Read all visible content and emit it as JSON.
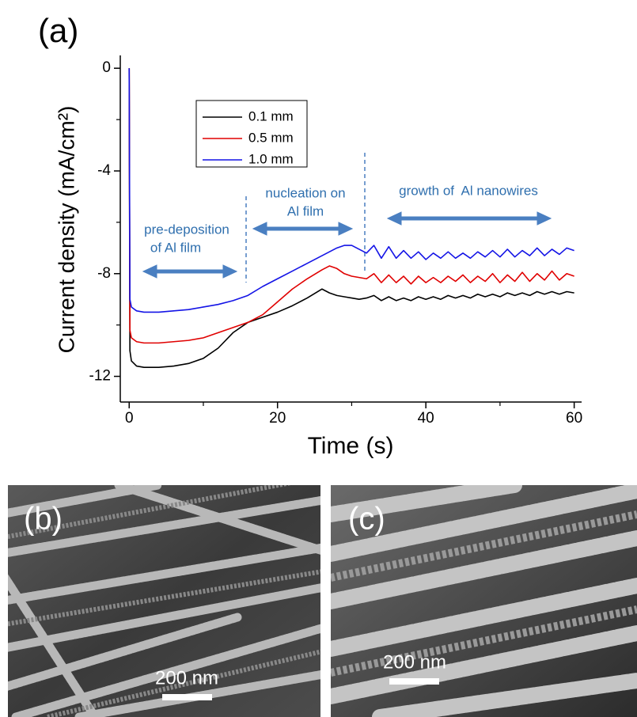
{
  "chart_data": {
    "type": "line",
    "panel_labels": [
      "(a)",
      "(b)",
      "(c)"
    ],
    "xlabel": "Time (s)",
    "ylabel": "Current density (mA/cm²)",
    "x": [
      0,
      0.1,
      0.3,
      1,
      2,
      4,
      6,
      8,
      10,
      12,
      14,
      16,
      18,
      20,
      22,
      24,
      26,
      27,
      28,
      29,
      30,
      31,
      32,
      33,
      34,
      35,
      36,
      37,
      38,
      39,
      40,
      41,
      42,
      43,
      44,
      45,
      46,
      47,
      48,
      49,
      50,
      51,
      52,
      53,
      54,
      55,
      56,
      57,
      58,
      59,
      60
    ],
    "series": [
      {
        "name": "0.1 mm",
        "color": "#000000",
        "values": [
          0,
          -11.0,
          -11.4,
          -11.6,
          -11.65,
          -11.65,
          -11.6,
          -11.5,
          -11.3,
          -10.9,
          -10.3,
          -9.9,
          -9.7,
          -9.5,
          -9.25,
          -8.95,
          -8.6,
          -8.75,
          -8.85,
          -8.9,
          -8.95,
          -9.0,
          -8.95,
          -8.85,
          -9.05,
          -8.9,
          -9.05,
          -8.95,
          -9.05,
          -8.9,
          -9.0,
          -8.9,
          -9.0,
          -8.85,
          -8.95,
          -8.85,
          -8.95,
          -8.8,
          -8.9,
          -8.8,
          -8.9,
          -8.75,
          -8.85,
          -8.75,
          -8.85,
          -8.7,
          -8.8,
          -8.7,
          -8.8,
          -8.7,
          -8.75
        ]
      },
      {
        "name": "0.5 mm",
        "color": "#e00000",
        "values": [
          0,
          -10.2,
          -10.5,
          -10.65,
          -10.7,
          -10.7,
          -10.65,
          -10.6,
          -10.5,
          -10.3,
          -10.1,
          -9.9,
          -9.6,
          -9.1,
          -8.6,
          -8.2,
          -7.85,
          -7.7,
          -7.8,
          -8.0,
          -8.1,
          -8.15,
          -8.2,
          -8.0,
          -8.35,
          -8.05,
          -8.35,
          -8.1,
          -8.4,
          -8.1,
          -8.35,
          -8.15,
          -8.35,
          -8.1,
          -8.3,
          -8.05,
          -8.35,
          -8.1,
          -8.3,
          -8.0,
          -8.35,
          -8.05,
          -8.3,
          -7.95,
          -8.3,
          -8.0,
          -8.25,
          -7.9,
          -8.25,
          -8.0,
          -8.1
        ]
      },
      {
        "name": "1.0 mm",
        "color": "#1414e6",
        "values": [
          0,
          -9.0,
          -9.3,
          -9.45,
          -9.5,
          -9.5,
          -9.45,
          -9.4,
          -9.3,
          -9.2,
          -9.05,
          -8.85,
          -8.5,
          -8.2,
          -7.9,
          -7.6,
          -7.3,
          -7.15,
          -7.0,
          -6.9,
          -6.9,
          -7.05,
          -7.2,
          -6.9,
          -7.4,
          -6.95,
          -7.4,
          -7.1,
          -7.4,
          -7.15,
          -7.45,
          -7.2,
          -7.4,
          -7.15,
          -7.4,
          -7.2,
          -7.4,
          -7.15,
          -7.35,
          -7.1,
          -7.35,
          -7.05,
          -7.35,
          -7.1,
          -7.3,
          -7.0,
          -7.3,
          -7.05,
          -7.25,
          -7.0,
          -7.1
        ]
      }
    ],
    "xlim": [
      -1.2,
      61
    ],
    "xticks": [
      0,
      20,
      40,
      60
    ],
    "ylim": [
      -13,
      0.5
    ],
    "yticks": [
      0,
      -4,
      -8,
      -12
    ],
    "legend": "upper-left",
    "annotations": [
      "pre-deposition",
      "of Al film",
      "nucleation on",
      "Al film",
      "growth of  Al nanowires"
    ],
    "scale_bars": [
      "200 nm",
      "200 nm"
    ]
  }
}
